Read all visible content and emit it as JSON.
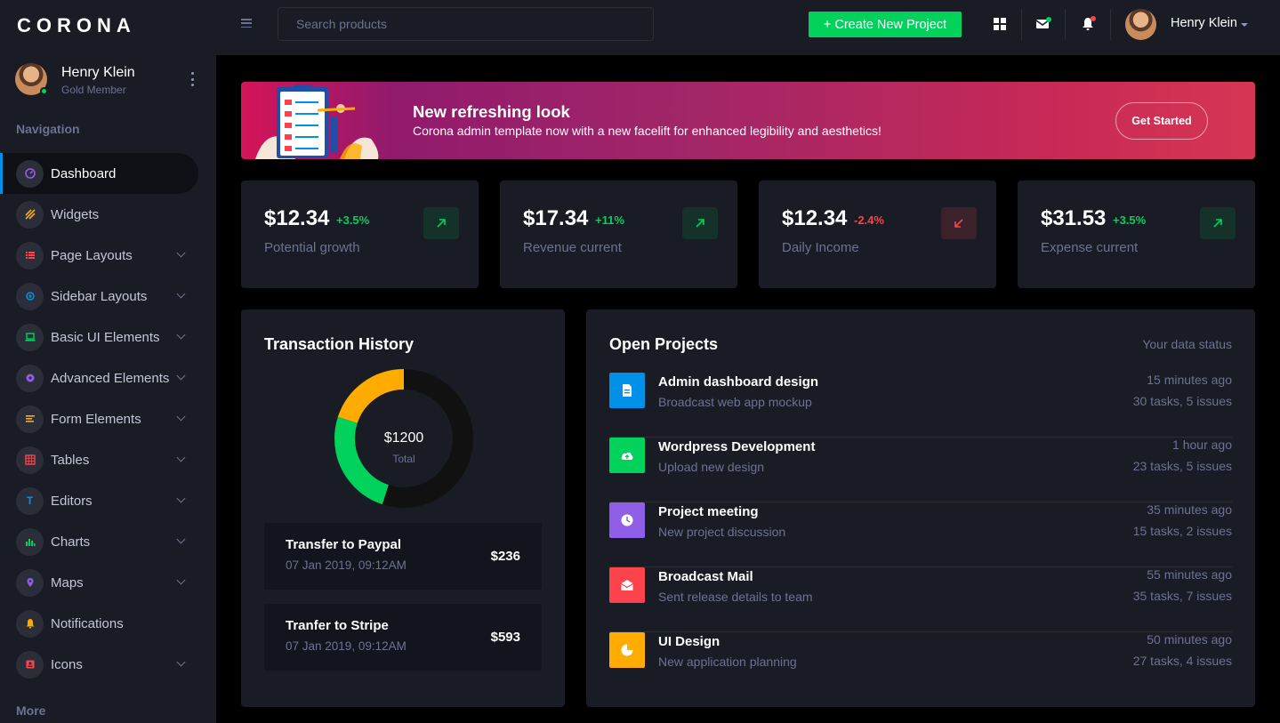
{
  "brand": "CORONA",
  "sidebar": {
    "profile": {
      "name": "Henry Klein",
      "role": "Gold Member"
    },
    "heading": "Navigation",
    "items": [
      {
        "label": "Dashboard",
        "icon": "dashboard-icon",
        "color": "#8f5fe8",
        "active": true
      },
      {
        "label": "Widgets",
        "icon": "widgets-icon",
        "color": "#ffab00"
      },
      {
        "label": "Page Layouts",
        "icon": "page-layouts-icon",
        "color": "#fc424a"
      },
      {
        "label": "Sidebar Layouts",
        "icon": "sidebar-layouts-icon",
        "color": "#0090e7"
      },
      {
        "label": "Basic UI Elements",
        "icon": "laptop-icon",
        "color": "#00d25b"
      },
      {
        "label": "Advanced Elements",
        "icon": "settings-icon",
        "color": "#8f5fe8"
      },
      {
        "label": "Form Elements",
        "icon": "form-icon",
        "color": "#ffab00"
      },
      {
        "label": "Tables",
        "icon": "table-icon",
        "color": "#fc424a"
      },
      {
        "label": "Editors",
        "icon": "editor-icon",
        "color": "#0090e7"
      },
      {
        "label": "Charts",
        "icon": "chart-icon",
        "color": "#00d25b"
      },
      {
        "label": "Maps",
        "icon": "map-icon",
        "color": "#8f5fe8"
      },
      {
        "label": "Notifications",
        "icon": "bell-icon",
        "color": "#ffab00"
      },
      {
        "label": "Icons",
        "icon": "icons-icon",
        "color": "#fc424a"
      }
    ],
    "more": "More"
  },
  "topbar": {
    "search_placeholder": "Search products",
    "create_label": "+ Create New Project",
    "user_name": "Henry Klein"
  },
  "banner": {
    "title": "New refreshing look",
    "subtitle": "Corona admin template now with a new facelift for enhanced legibility and aesthetics!",
    "button": "Get Started"
  },
  "stats": [
    {
      "value": "$12.34",
      "change": "+3.5%",
      "label": "Potential growth",
      "trend": "up"
    },
    {
      "value": "$17.34",
      "change": "+11%",
      "label": "Revenue current",
      "trend": "up"
    },
    {
      "value": "$12.34",
      "change": "-2.4%",
      "label": "Daily Income",
      "trend": "down"
    },
    {
      "value": "$31.53",
      "change": "+3.5%",
      "label": "Expense current",
      "trend": "up"
    }
  ],
  "transactions": {
    "title": "Transaction History",
    "donut": {
      "center_value": "$1200",
      "center_label": "Total",
      "segments": [
        {
          "value": 55,
          "color": "#111111"
        },
        {
          "value": 25,
          "color": "#00d25b"
        },
        {
          "value": 20,
          "color": "#ffab00"
        }
      ]
    },
    "items": [
      {
        "title": "Transfer to Paypal",
        "date": "07 Jan 2019, 09:12AM",
        "amount": "$236"
      },
      {
        "title": "Tranfer to Stripe",
        "date": "07 Jan 2019, 09:12AM",
        "amount": "$593"
      }
    ]
  },
  "projects": {
    "title": "Open Projects",
    "status_label": "Your data status",
    "items": [
      {
        "title": "Admin dashboard design",
        "subtitle": "Broadcast web app mockup",
        "time": "15 minutes ago",
        "tasks": "30 tasks, 5 issues",
        "color": "#0090e7",
        "icon": "file-icon"
      },
      {
        "title": "Wordpress Development",
        "subtitle": "Upload new design",
        "time": "1 hour ago",
        "tasks": "23 tasks, 5 issues",
        "color": "#00d25b",
        "icon": "cloud-upload-icon"
      },
      {
        "title": "Project meeting",
        "subtitle": "New project discussion",
        "time": "35 minutes ago",
        "tasks": "15 tasks, 2 issues",
        "color": "#8f5fe8",
        "icon": "clock-icon"
      },
      {
        "title": "Broadcast Mail",
        "subtitle": "Sent release details to team",
        "time": "55 minutes ago",
        "tasks": "35 tasks, 7 issues",
        "color": "#fc424a",
        "icon": "mail-open-icon"
      },
      {
        "title": "UI Design",
        "subtitle": "New application planning",
        "time": "50 minutes ago",
        "tasks": "27 tasks, 4 issues",
        "color": "#ffab00",
        "icon": "pie-chart-icon"
      }
    ]
  }
}
